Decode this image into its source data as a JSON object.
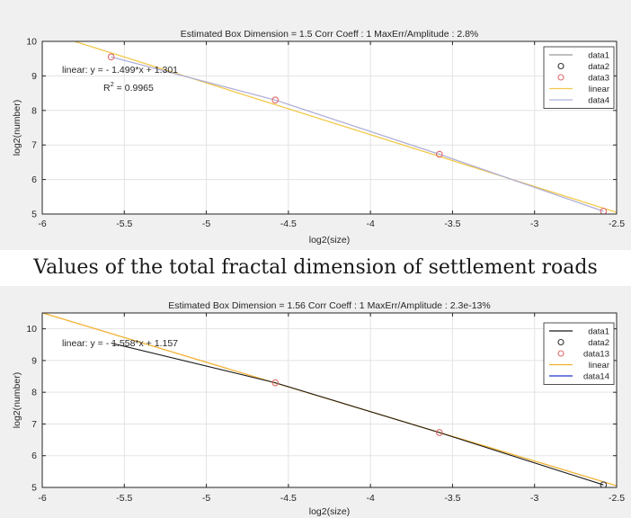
{
  "caption": "Values of the total fractal dimension of settlement roads",
  "chart_data": [
    {
      "type": "line",
      "title": "Estimated Box Dimension =  1.5    Corr Coeff : 1    MaxErr/Amplitude : 2.8%",
      "xlabel": "log2(size)",
      "ylabel": "log2(number)",
      "xlim": [
        -6,
        -2.5
      ],
      "ylim": [
        5,
        10
      ],
      "xticks": [
        -6,
        -5.5,
        -5,
        -4.5,
        -4,
        -3.5,
        -3,
        -2.5
      ],
      "xtick_labels": [
        "-6",
        "-5.5",
        "-5",
        "-4.5",
        "-4",
        "-3.5",
        "-3",
        "-2.5"
      ],
      "yticks": [
        5,
        6,
        7,
        8,
        9,
        10
      ],
      "ytick_labels": [
        "5",
        "6",
        "7",
        "8",
        "9",
        "10"
      ],
      "grid": true,
      "legend_position": "top-right",
      "annotation": {
        "text": "linear: y = - 1.499*x + 1.301",
        "r2_prefix": "R",
        "r2_exp": "2",
        "r2_value": " = 0.9965"
      },
      "series": [
        {
          "name": "data1",
          "style": "line",
          "color": "#9a9a9a",
          "x": [
            -5.58,
            -4.58,
            -3.58,
            -2.58
          ],
          "y": [
            9.55,
            8.3,
            6.73,
            5.08
          ]
        },
        {
          "name": "data2",
          "style": "marker",
          "color": "#333333",
          "x": [],
          "y": []
        },
        {
          "name": "data3",
          "style": "marker",
          "color": "#e06a6a",
          "x": [
            -5.58,
            -4.58,
            -3.58,
            -2.58
          ],
          "y": [
            9.55,
            8.3,
            6.73,
            5.08
          ]
        },
        {
          "name": "linear",
          "style": "line",
          "color": "#f2c94c",
          "x": [
            -5.8,
            -2.5
          ],
          "y": [
            9.996,
            5.048
          ]
        },
        {
          "name": "data4",
          "style": "line",
          "color": "#b0b0e0",
          "x": [
            -5.58,
            -4.58,
            -3.58,
            -2.58
          ],
          "y": [
            9.55,
            8.3,
            6.73,
            5.08
          ]
        }
      ]
    },
    {
      "type": "line",
      "title": "Estimated Box Dimension =  1.56    Corr Coeff : 1    MaxErr/Amplitude : 2.3e-13%",
      "xlabel": "log2(size)",
      "ylabel": "log2(number)",
      "xlim": [
        -6,
        -2.5
      ],
      "ylim": [
        5,
        10.5
      ],
      "xticks": [
        -6,
        -5.5,
        -5,
        -4.5,
        -4,
        -3.5,
        -3,
        -2.5
      ],
      "xtick_labels": [
        "-6",
        "-5.5",
        "-5",
        "-4.5",
        "-4",
        "-3.5",
        "-3",
        "-2.5"
      ],
      "yticks": [
        5,
        6,
        7,
        8,
        9,
        10
      ],
      "ytick_labels": [
        "5",
        "6",
        "7",
        "8",
        "9",
        "10"
      ],
      "grid": true,
      "legend_position": "top-right",
      "annotation": {
        "text": "linear: y = - 1.558*x + 1.157"
      },
      "series": [
        {
          "name": "data1",
          "style": "line",
          "color": "#1a1a1a",
          "x": [
            -5.58,
            -4.58,
            -3.58,
            -2.58
          ],
          "y": [
            9.55,
            8.3,
            6.73,
            5.08
          ]
        },
        {
          "name": "data2",
          "style": "marker",
          "color": "#333333",
          "x": [
            -2.58
          ],
          "y": [
            5.08
          ]
        },
        {
          "name": "data13",
          "style": "marker",
          "color": "#e06a6a",
          "x": [
            -4.58,
            -3.58
          ],
          "y": [
            8.3,
            6.73
          ]
        },
        {
          "name": "linear",
          "style": "line",
          "color": "#f2b234",
          "x": [
            -6,
            -2.5
          ],
          "y": [
            10.505,
            5.052
          ]
        },
        {
          "name": "data14",
          "style": "line",
          "color": "#2233cc",
          "x": [],
          "y": []
        }
      ]
    }
  ]
}
